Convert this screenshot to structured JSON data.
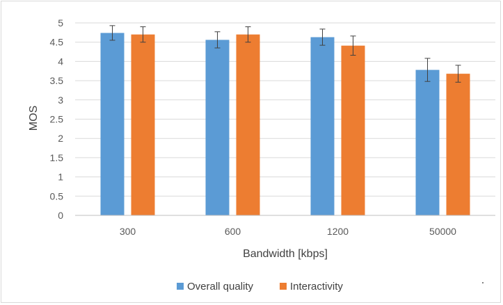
{
  "chart_data": {
    "type": "bar",
    "title": "",
    "xlabel": "Bandwidth [kbps]",
    "ylabel": "MOS",
    "ylim": [
      0,
      5
    ],
    "yticks": [
      "0",
      "0.5",
      "1",
      "1.5",
      "2",
      "2.5",
      "3",
      "3.5",
      "4",
      "4.5",
      "5"
    ],
    "categories": [
      "300",
      "600",
      "1200",
      "50000"
    ],
    "grid": "horizontal",
    "legend_position": "bottom",
    "series": [
      {
        "name": "Overall quality",
        "color": "#5b9bd5",
        "values": [
          4.74,
          4.56,
          4.63,
          3.78
        ],
        "error": [
          0.19,
          0.21,
          0.21,
          0.3
        ]
      },
      {
        "name": "Interactivity",
        "color": "#ed7d31",
        "values": [
          4.7,
          4.7,
          4.41,
          3.68
        ],
        "error": [
          0.2,
          0.2,
          0.25,
          0.22
        ]
      }
    ]
  }
}
